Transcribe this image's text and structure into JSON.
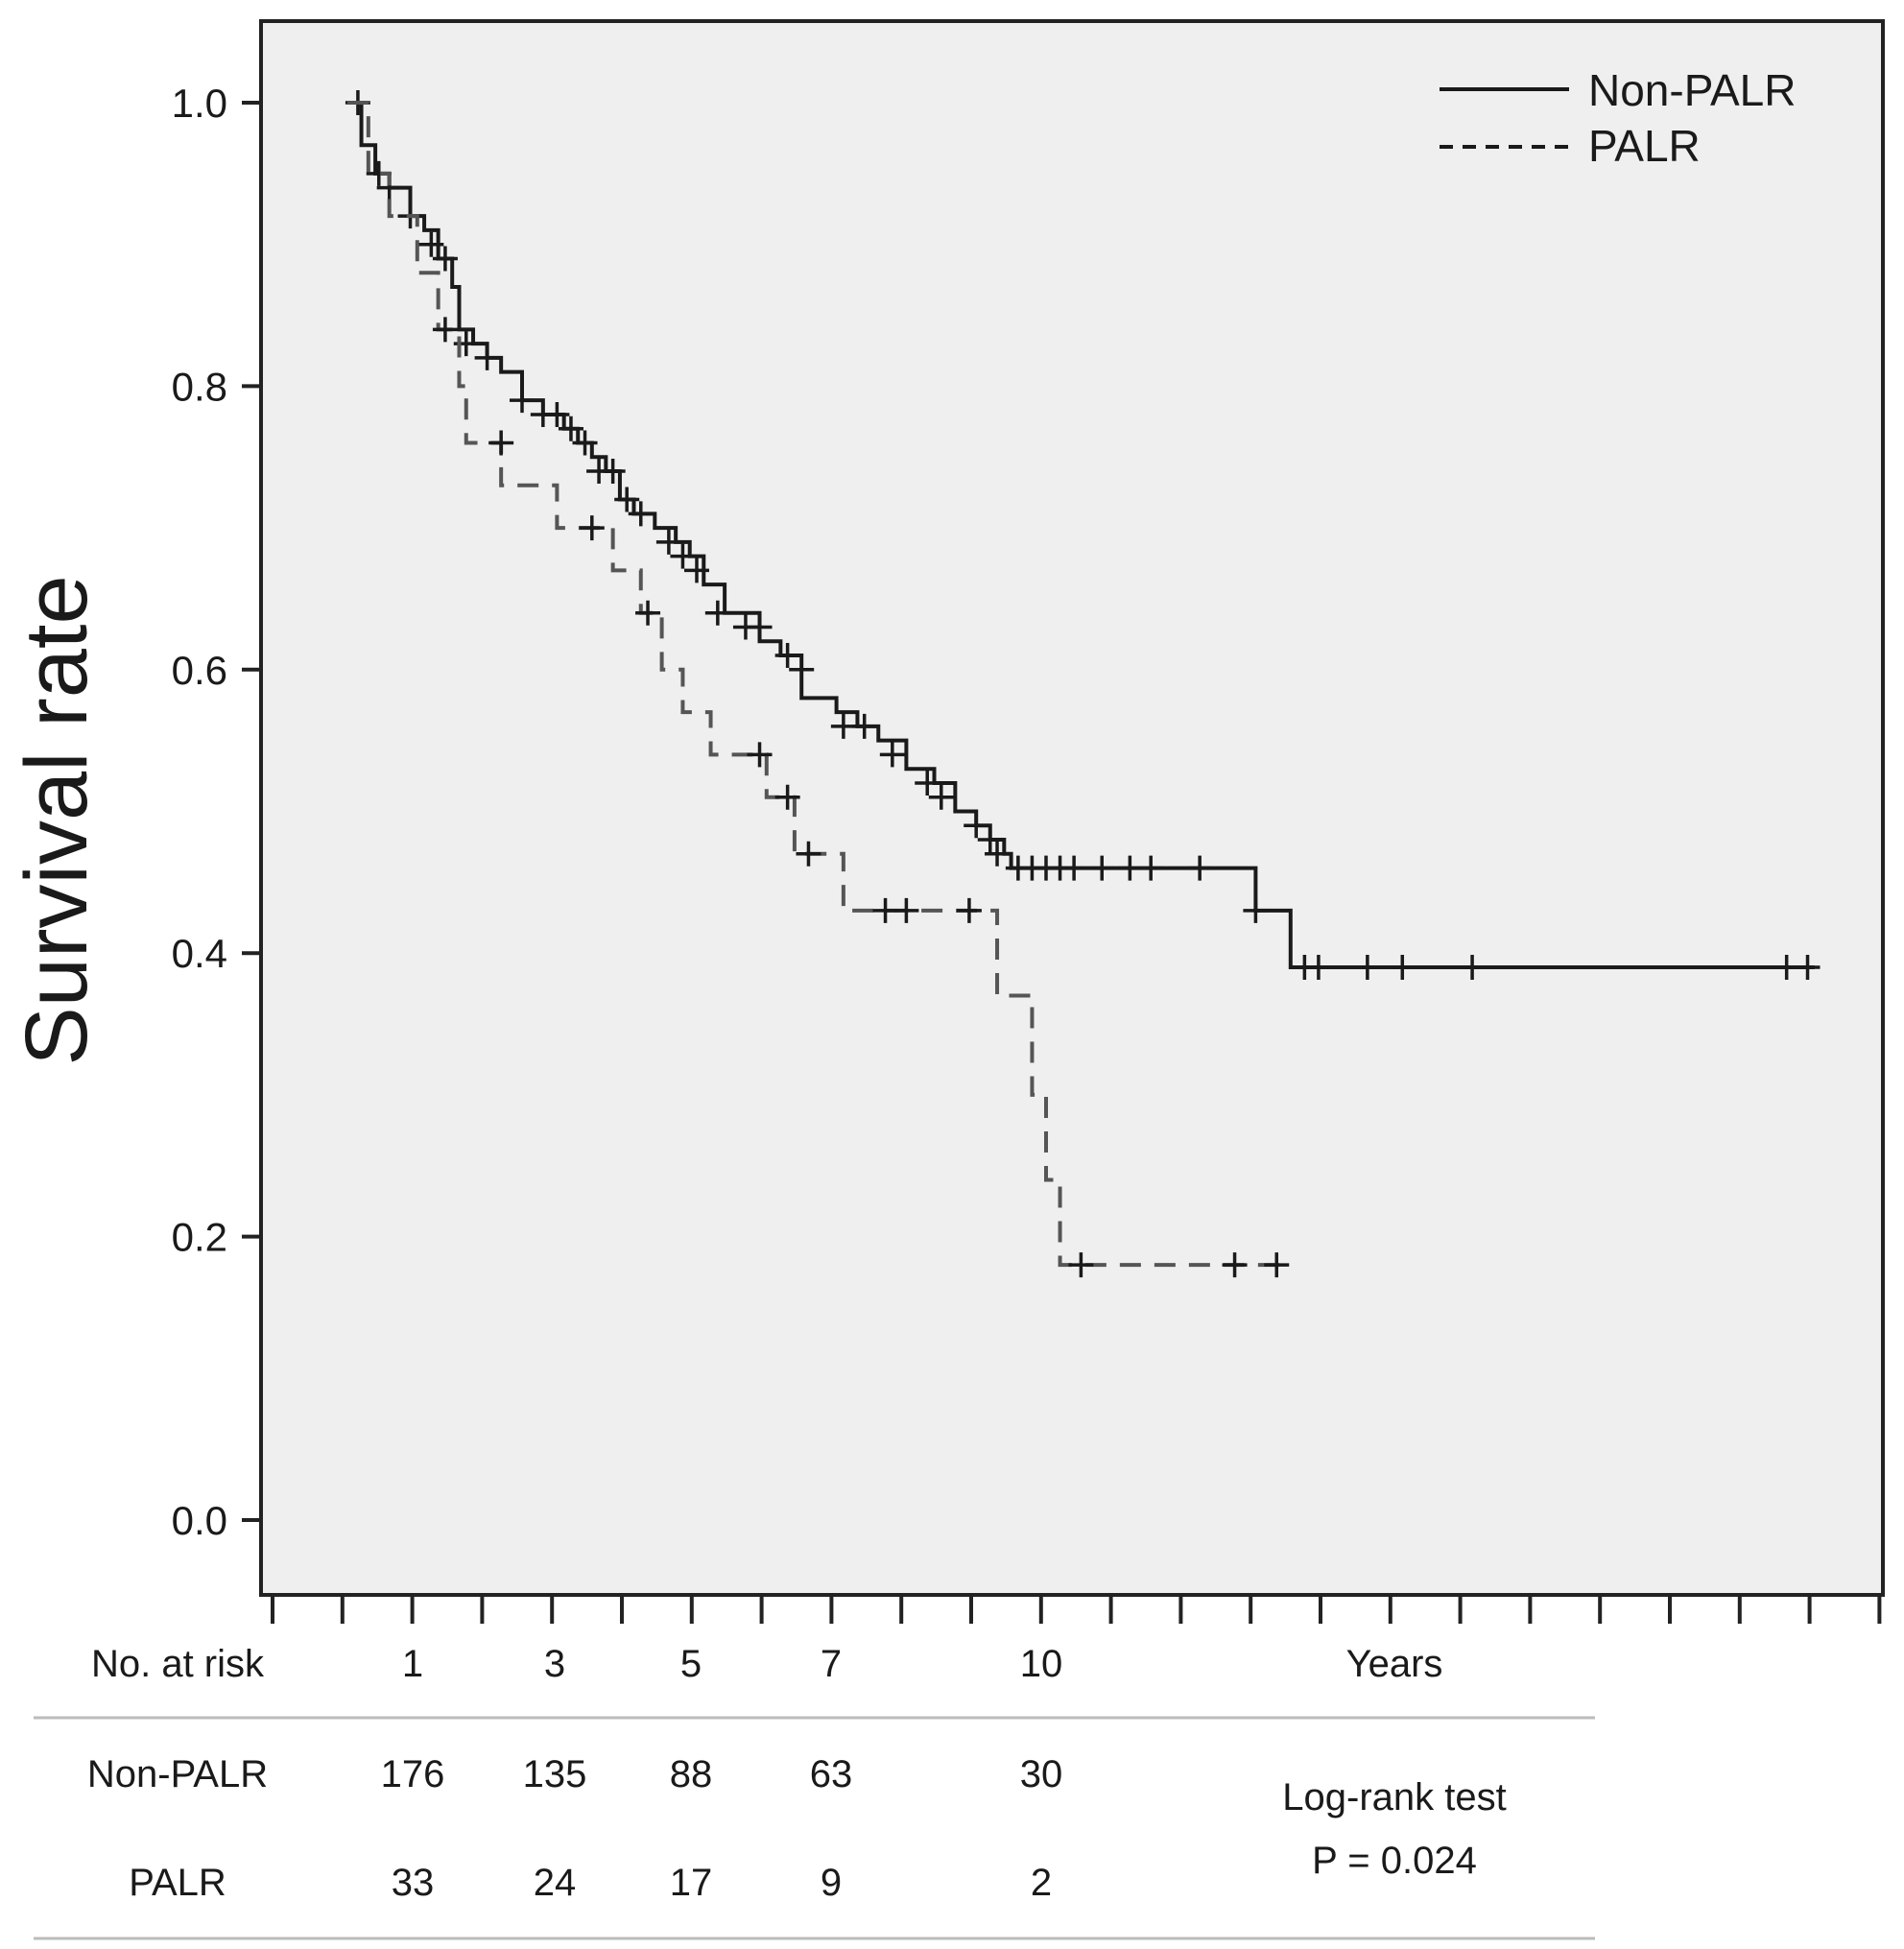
{
  "chart_data": {
    "type": "line",
    "subtype": "kaplan-meier",
    "title": "",
    "ylabel": "Survival rate",
    "xlabel": "Years",
    "xlim": [
      0,
      23
    ],
    "ylim": [
      -0.05,
      1.05
    ],
    "y_ticks": [
      "0.0",
      "0.2",
      "0.4",
      "0.6",
      "0.8",
      "1.0"
    ],
    "y_tick_values": [
      0.0,
      0.2,
      0.4,
      0.6,
      0.8,
      1.0
    ],
    "grid": false,
    "background": "#efefef",
    "legend_position": "top-right",
    "series": [
      {
        "name": "Non-PALR",
        "style": "solid",
        "color": "#1a1a1a",
        "steps": [
          [
            0.0,
            1.0
          ],
          [
            0.2,
            0.97
          ],
          [
            0.4,
            0.95
          ],
          [
            0.6,
            0.94
          ],
          [
            0.9,
            0.92
          ],
          [
            1.1,
            0.91
          ],
          [
            1.3,
            0.89
          ],
          [
            1.5,
            0.87
          ],
          [
            1.6,
            0.84
          ],
          [
            1.8,
            0.83
          ],
          [
            2.0,
            0.82
          ],
          [
            2.2,
            0.81
          ],
          [
            2.5,
            0.79
          ],
          [
            2.8,
            0.78
          ],
          [
            3.1,
            0.77
          ],
          [
            3.3,
            0.76
          ],
          [
            3.5,
            0.75
          ],
          [
            3.7,
            0.74
          ],
          [
            3.9,
            0.72
          ],
          [
            4.1,
            0.71
          ],
          [
            4.4,
            0.7
          ],
          [
            4.7,
            0.69
          ],
          [
            4.9,
            0.68
          ],
          [
            5.1,
            0.66
          ],
          [
            5.4,
            0.64
          ],
          [
            5.9,
            0.62
          ],
          [
            6.2,
            0.61
          ],
          [
            6.5,
            0.58
          ],
          [
            7.0,
            0.57
          ],
          [
            7.3,
            0.56
          ],
          [
            7.6,
            0.55
          ],
          [
            8.0,
            0.53
          ],
          [
            8.4,
            0.52
          ],
          [
            8.7,
            0.5
          ],
          [
            9.0,
            0.49
          ],
          [
            9.2,
            0.48
          ],
          [
            9.4,
            0.47
          ],
          [
            9.5,
            0.46
          ],
          [
            13.0,
            0.43
          ],
          [
            13.5,
            0.39
          ],
          [
            21.0,
            0.39
          ]
        ],
        "censored": [
          [
            0.15,
            1.0
          ],
          [
            0.45,
            0.95
          ],
          [
            0.6,
            0.94
          ],
          [
            0.9,
            0.92
          ],
          [
            1.2,
            0.9
          ],
          [
            1.4,
            0.89
          ],
          [
            1.7,
            0.83
          ],
          [
            2.0,
            0.82
          ],
          [
            2.5,
            0.79
          ],
          [
            2.8,
            0.78
          ],
          [
            3.0,
            0.78
          ],
          [
            3.2,
            0.77
          ],
          [
            3.4,
            0.76
          ],
          [
            3.6,
            0.74
          ],
          [
            3.8,
            0.74
          ],
          [
            4.0,
            0.72
          ],
          [
            4.2,
            0.71
          ],
          [
            4.6,
            0.69
          ],
          [
            4.8,
            0.68
          ],
          [
            5.0,
            0.67
          ],
          [
            5.3,
            0.64
          ],
          [
            5.7,
            0.63
          ],
          [
            5.9,
            0.63
          ],
          [
            6.3,
            0.61
          ],
          [
            6.5,
            0.6
          ],
          [
            7.1,
            0.56
          ],
          [
            7.4,
            0.56
          ],
          [
            7.8,
            0.54
          ],
          [
            8.3,
            0.52
          ],
          [
            8.5,
            0.51
          ],
          [
            9.0,
            0.49
          ],
          [
            9.2,
            0.48
          ],
          [
            9.3,
            0.47
          ],
          [
            9.6,
            0.46
          ],
          [
            9.8,
            0.46
          ],
          [
            10.0,
            0.46
          ],
          [
            10.2,
            0.46
          ],
          [
            10.4,
            0.46
          ],
          [
            10.8,
            0.46
          ],
          [
            11.2,
            0.46
          ],
          [
            11.5,
            0.46
          ],
          [
            12.2,
            0.46
          ],
          [
            13.0,
            0.43
          ],
          [
            13.7,
            0.39
          ],
          [
            13.9,
            0.39
          ],
          [
            14.6,
            0.39
          ],
          [
            15.1,
            0.39
          ],
          [
            16.1,
            0.39
          ],
          [
            20.6,
            0.39
          ],
          [
            20.9,
            0.39
          ]
        ]
      },
      {
        "name": "PALR",
        "style": "dashed",
        "color": "#555555",
        "steps": [
          [
            0.0,
            1.0
          ],
          [
            0.3,
            0.95
          ],
          [
            0.6,
            0.92
          ],
          [
            1.0,
            0.88
          ],
          [
            1.3,
            0.84
          ],
          [
            1.6,
            0.8
          ],
          [
            1.7,
            0.76
          ],
          [
            2.2,
            0.73
          ],
          [
            3.0,
            0.7
          ],
          [
            3.8,
            0.67
          ],
          [
            4.2,
            0.64
          ],
          [
            4.5,
            0.6
          ],
          [
            4.8,
            0.57
          ],
          [
            5.2,
            0.54
          ],
          [
            6.0,
            0.51
          ],
          [
            6.4,
            0.47
          ],
          [
            7.1,
            0.43
          ],
          [
            9.3,
            0.37
          ],
          [
            9.8,
            0.3
          ],
          [
            10.0,
            0.24
          ],
          [
            10.2,
            0.18
          ],
          [
            13.4,
            0.18
          ]
        ],
        "censored": [
          [
            1.4,
            0.84
          ],
          [
            2.2,
            0.76
          ],
          [
            3.5,
            0.7
          ],
          [
            4.3,
            0.64
          ],
          [
            5.9,
            0.54
          ],
          [
            6.3,
            0.51
          ],
          [
            6.6,
            0.47
          ],
          [
            7.7,
            0.43
          ],
          [
            8.0,
            0.43
          ],
          [
            8.9,
            0.43
          ],
          [
            10.5,
            0.18
          ],
          [
            12.7,
            0.18
          ],
          [
            13.3,
            0.18
          ]
        ]
      }
    ],
    "x_tick_marks": 24,
    "risk_table": {
      "heading": "No. at risk",
      "times": [
        "1",
        "3",
        "5",
        "7",
        "10"
      ],
      "time_values": [
        1,
        3,
        5,
        7,
        10
      ],
      "unit_label": "Years",
      "rows": [
        {
          "label": "Non-PALR",
          "values": [
            "176",
            "135",
            "88",
            "63",
            "30"
          ]
        },
        {
          "label": "PALR",
          "values": [
            "33",
            "24",
            "17",
            "9",
            "2"
          ]
        }
      ]
    },
    "annotation": {
      "line1": "Log-rank test",
      "line2": "P = 0.024"
    }
  }
}
